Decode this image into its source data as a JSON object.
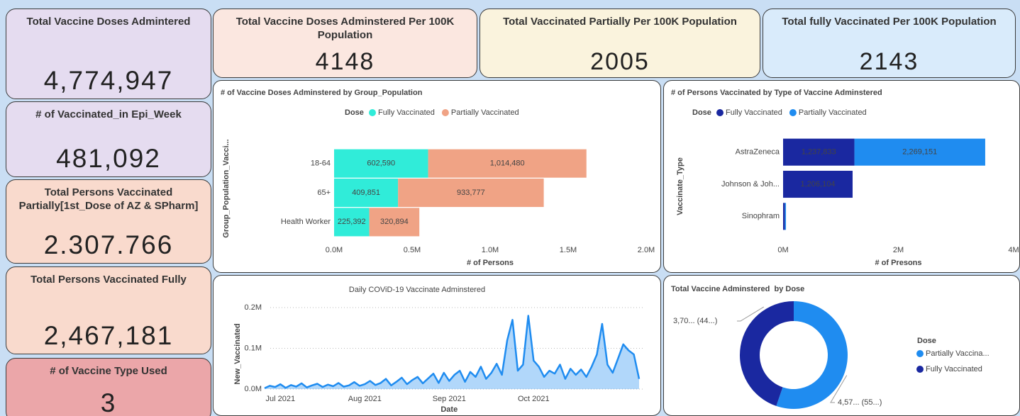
{
  "kpis": [
    {
      "title": "Total Vaccine Doses Admintered",
      "value": "4,774,947"
    },
    {
      "title": "# of Vaccinated_in Epi_Week",
      "value": "481,092"
    },
    {
      "title": "Total Persons Vaccinated Partially[1st_Dose of AZ & SPharm]",
      "value": "2.307.766"
    },
    {
      "title": "Total Persons Vaccinated Fully",
      "value": "2,467,181"
    },
    {
      "title": "# of Vaccine Type Used",
      "value": "3"
    },
    {
      "title": "Total Vaccine Doses Adminstered Per 100K Population",
      "value": "4148"
    },
    {
      "title": "Total Vaccinated Partially Per 100K Population",
      "value": "2005"
    },
    {
      "title": "Total fully Vaccinated Per 100K Population",
      "value": "2143"
    }
  ],
  "chart_data": [
    {
      "type": "bar",
      "orientation": "horizontal",
      "stacked": true,
      "title": "# of Vaccine Doses Adminstered by Group_Population",
      "legend_title": "Dose",
      "x_label": "# of Persons",
      "y_label": "Group_Population_Vacci...",
      "categories": [
        "18-64",
        "65+",
        "Health Worker"
      ],
      "series": [
        {
          "name": "Fully Vaccinated",
          "color": "#30ecd9",
          "values": [
            602590,
            409851,
            225392
          ],
          "value_labels": [
            "602,590",
            "409,851",
            "225,392"
          ]
        },
        {
          "name": "Partially Vaccinated",
          "color": "#f0a385",
          "values": [
            1014480,
            933777,
            320894
          ],
          "value_labels": [
            "1,014,480",
            "933,777",
            "320,894"
          ]
        }
      ],
      "xlim": [
        0,
        2000000
      ],
      "xticks": [
        {
          "value": 0,
          "label": "0.0M"
        },
        {
          "value": 500000,
          "label": "0.5M"
        },
        {
          "value": 1000000,
          "label": "1.0M"
        },
        {
          "value": 1500000,
          "label": "1.5M"
        },
        {
          "value": 2000000,
          "label": "2.0M"
        }
      ]
    },
    {
      "type": "bar",
      "orientation": "horizontal",
      "stacked": true,
      "title": "# of Persons Vaccinated by Type of Vaccine Adminstered",
      "legend_title": "Dose",
      "x_label": "# of Presons",
      "y_label": "Vaccinate_Type",
      "categories": [
        "AstraZeneca",
        "Johnson & Joh...",
        "Sinophram"
      ],
      "series": [
        {
          "name": "Fully Vaccinated",
          "color": "#1a28a0",
          "values": [
            1237833,
            1206104,
            30000
          ],
          "value_labels": [
            "1,237,833",
            "1,206,104",
            null
          ]
        },
        {
          "name": "Partially Vaccinated",
          "color": "#1f8cf0",
          "values": [
            2269151,
            null,
            20000
          ],
          "value_labels": [
            "2,269,151",
            null,
            null
          ]
        }
      ],
      "xlim": [
        0,
        4000000
      ],
      "xticks": [
        {
          "value": 0,
          "label": "0M"
        },
        {
          "value": 2000000,
          "label": "2M"
        },
        {
          "value": 4000000,
          "label": "4M"
        }
      ]
    },
    {
      "type": "line",
      "area": true,
      "title": "Daily COViD-19 Vaccinate Adminstered",
      "x_label": "Date",
      "y_label": "New_Vaccinated",
      "color": "#1f8cf0",
      "grid": true,
      "categories": [
        null,
        null,
        null,
        "Jul 2021",
        null,
        null,
        null,
        null,
        null,
        null,
        null,
        null,
        null,
        null,
        null,
        null,
        null,
        null,
        null,
        "Aug 2021",
        null,
        null,
        null,
        null,
        null,
        null,
        null,
        null,
        null,
        null,
        null,
        null,
        null,
        null,
        null,
        "Sep 2021",
        null,
        null,
        null,
        null,
        null,
        null,
        null,
        null,
        null,
        null,
        null,
        null,
        null,
        null,
        null,
        "Oct 2021",
        null,
        null,
        null,
        null,
        null,
        null,
        null,
        null,
        null,
        null,
        null,
        null,
        null,
        null,
        null,
        null,
        null,
        null,
        null,
        null
      ],
      "values": [
        2000,
        8000,
        5000,
        12000,
        3000,
        10000,
        6000,
        14000,
        4000,
        9000,
        13000,
        5000,
        11000,
        7000,
        15000,
        6000,
        9000,
        17000,
        8000,
        12000,
        20000,
        10000,
        15000,
        25000,
        9000,
        18000,
        28000,
        12000,
        22000,
        30000,
        14000,
        26000,
        38000,
        15000,
        40000,
        20000,
        35000,
        45000,
        18000,
        42000,
        30000,
        55000,
        25000,
        40000,
        62000,
        35000,
        120000,
        170000,
        45000,
        60000,
        180000,
        70000,
        55000,
        30000,
        45000,
        38000,
        60000,
        25000,
        50000,
        35000,
        48000,
        30000,
        55000,
        85000,
        160000,
        60000,
        40000,
        75000,
        110000,
        95000,
        85000,
        25000
      ],
      "ylim": [
        0,
        200000
      ],
      "yticks": [
        {
          "value": 0,
          "label": "0.0M"
        },
        {
          "value": 100000,
          "label": "0.1M"
        },
        {
          "value": 200000,
          "label": "0.2M"
        }
      ]
    },
    {
      "type": "pie",
      "donut": true,
      "title": "Total Vaccine Adminstered  by Dose",
      "legend_title": "Dose",
      "categories": [
        "Partially Vaccina...",
        "Fully Vaccinated"
      ],
      "colors": [
        "#1f8cf0",
        "#1a28a0"
      ],
      "values": [
        4570000,
        3700000
      ],
      "value_labels": [
        "4,57... (55...)",
        "3,70... (44...)"
      ]
    }
  ]
}
